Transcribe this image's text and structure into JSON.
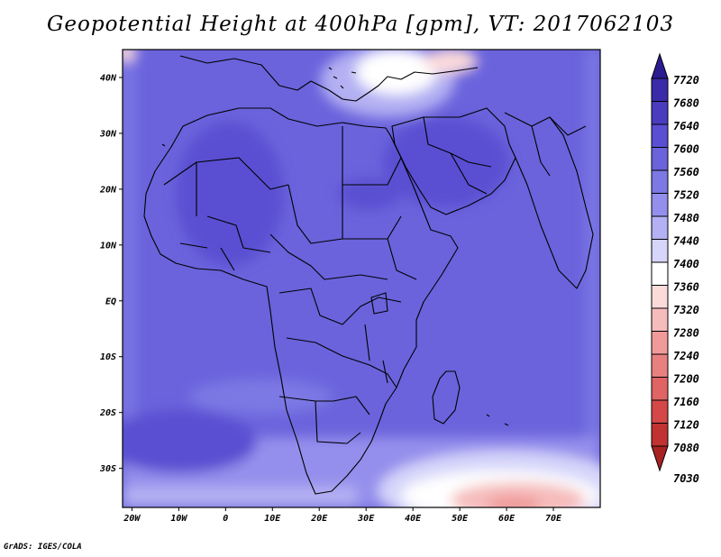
{
  "title": "Geopotential Height at 400hPa [gpm], VT: 2017062103",
  "credit": "GrADS: IGES/COLA",
  "map": {
    "lon_range": [
      -22,
      80
    ],
    "lat_range": [
      -37,
      45
    ],
    "lon_ticks": [
      {
        "value": -20,
        "label": "20W"
      },
      {
        "value": -10,
        "label": "10W"
      },
      {
        "value": 0,
        "label": "0"
      },
      {
        "value": 10,
        "label": "10E"
      },
      {
        "value": 20,
        "label": "20E"
      },
      {
        "value": 30,
        "label": "30E"
      },
      {
        "value": 40,
        "label": "40E"
      },
      {
        "value": 50,
        "label": "50E"
      },
      {
        "value": 60,
        "label": "60E"
      },
      {
        "value": 70,
        "label": "70E"
      }
    ],
    "lat_ticks": [
      {
        "value": 40,
        "label": "40N"
      },
      {
        "value": 30,
        "label": "30N"
      },
      {
        "value": 20,
        "label": "20N"
      },
      {
        "value": 10,
        "label": "10N"
      },
      {
        "value": 0,
        "label": "EQ"
      },
      {
        "value": -10,
        "label": "10S"
      },
      {
        "value": -20,
        "label": "20S"
      },
      {
        "value": -30,
        "label": "30S"
      }
    ],
    "background_color": "#6a63dc"
  },
  "colorbar": {
    "levels": [
      {
        "label": "7720",
        "color": "#2b1c92"
      },
      {
        "label": "7680",
        "color": "#3a2ba8"
      },
      {
        "label": "7640",
        "color": "#4a3cbf"
      },
      {
        "label": "7600",
        "color": "#5a4fd2"
      },
      {
        "label": "7560",
        "color": "#6a63dc"
      },
      {
        "label": "7520",
        "color": "#7c78e4"
      },
      {
        "label": "7480",
        "color": "#948fec"
      },
      {
        "label": "7440",
        "color": "#b3b0f3"
      },
      {
        "label": "7400",
        "color": "#d6d5fa"
      },
      {
        "label": "7360",
        "color": "#ffffff"
      },
      {
        "label": "7320",
        "color": "#fbdada"
      },
      {
        "label": "7280",
        "color": "#f6bcbc"
      },
      {
        "label": "7240",
        "color": "#f09a9a"
      },
      {
        "label": "7200",
        "color": "#e98080"
      },
      {
        "label": "7160",
        "color": "#e06464"
      },
      {
        "label": "7120",
        "color": "#d44848"
      },
      {
        "label": "7080",
        "color": "#c13232"
      },
      {
        "label": "7030",
        "color": "#a82222"
      }
    ]
  }
}
